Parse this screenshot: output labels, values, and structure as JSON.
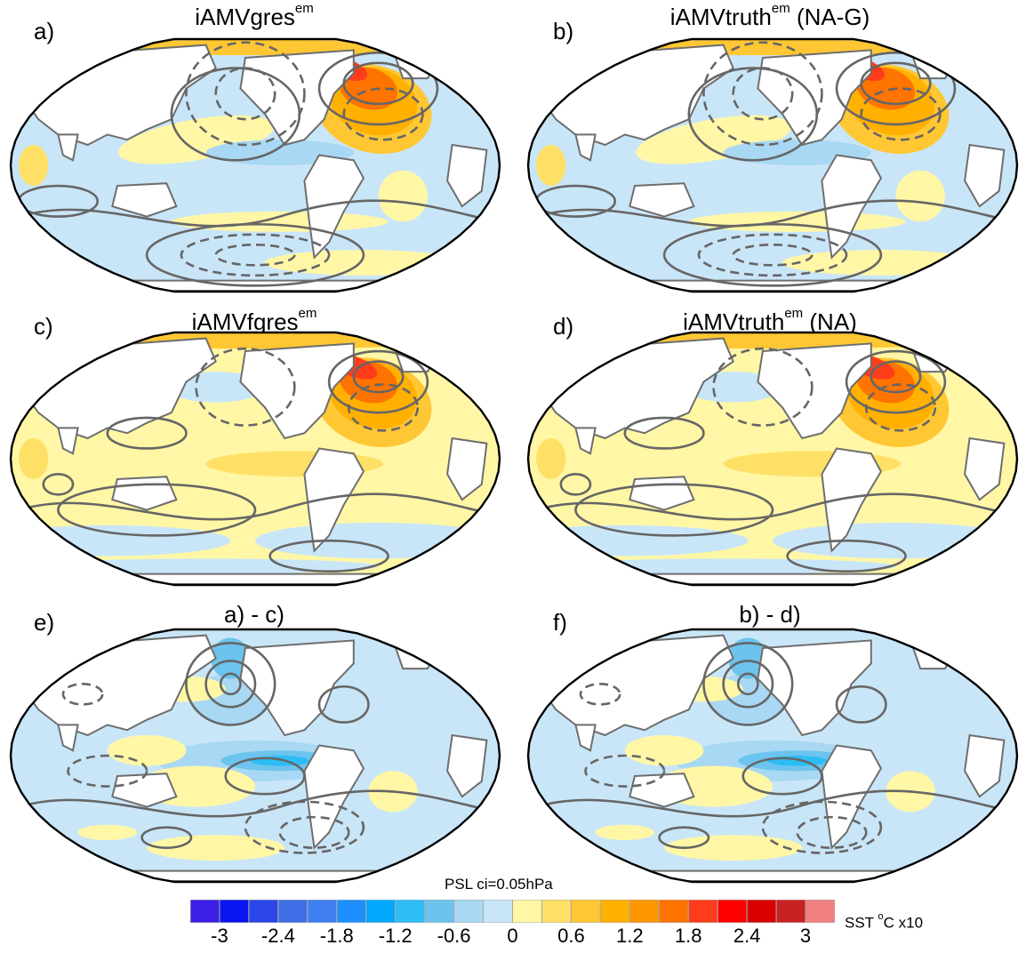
{
  "figure": {
    "panels": [
      {
        "letter": "a)",
        "title_main": "iAMVgres",
        "title_sup": "em",
        "title_tail": "",
        "pattern": "warm_na"
      },
      {
        "letter": "b)",
        "title_main": "iAMVtruth",
        "title_sup": "em",
        "title_tail": " (NA-G)",
        "pattern": "warm_na"
      },
      {
        "letter": "c)",
        "title_main": "iAMVfgres",
        "title_sup": "em",
        "title_tail": "",
        "pattern": "warm_global"
      },
      {
        "letter": "d)",
        "title_main": "iAMVtruth",
        "title_sup": "em",
        "title_tail": " (NA)",
        "pattern": "warm_global"
      },
      {
        "letter": "e)",
        "title_main": "a) - c)",
        "title_sup": "",
        "title_tail": "",
        "pattern": "diff"
      },
      {
        "letter": "f)",
        "title_main": "b) - d)",
        "title_sup": "",
        "title_tail": "",
        "pattern": "diff"
      }
    ],
    "psl_note": "PSL ci=0.05hPa",
    "sst_label_main": "SST ",
    "sst_label_sup": "o",
    "sst_label_tail": "C x10"
  },
  "chart_data": {
    "type": "heatmap",
    "description_of_fields": "Six global map panels of SST anomaly (shaded) with PSL contours",
    "colorbar": {
      "ticks": [
        "-3",
        "-2.4",
        "-1.8",
        "-1.2",
        "-0.6",
        "0",
        "0.6",
        "1.2",
        "1.8",
        "2.4",
        "3"
      ],
      "levels": [
        -3,
        -2.7,
        -2.4,
        -2.1,
        -1.8,
        -1.5,
        -1.2,
        -0.9,
        -0.6,
        -0.3,
        0,
        0.3,
        0.6,
        0.9,
        1.2,
        1.5,
        1.8,
        2.1,
        2.4,
        2.7,
        3
      ],
      "colors": [
        "#3b1fe6",
        "#0a14f0",
        "#2a46e6",
        "#3f6fe6",
        "#3f7ff0",
        "#1f8fff",
        "#00a8ff",
        "#2ebcf5",
        "#6cc4ee",
        "#a8d8f3",
        "#c9e6f8",
        "#fff7a6",
        "#ffe066",
        "#ffc733",
        "#ffb000",
        "#ff9500",
        "#ff7300",
        "#ff3c1a",
        "#ff0000",
        "#d90000",
        "#c92222",
        "#f08080"
      ]
    },
    "psl_contour_interval_hPa": 0.05,
    "units": "SST °C x10"
  }
}
